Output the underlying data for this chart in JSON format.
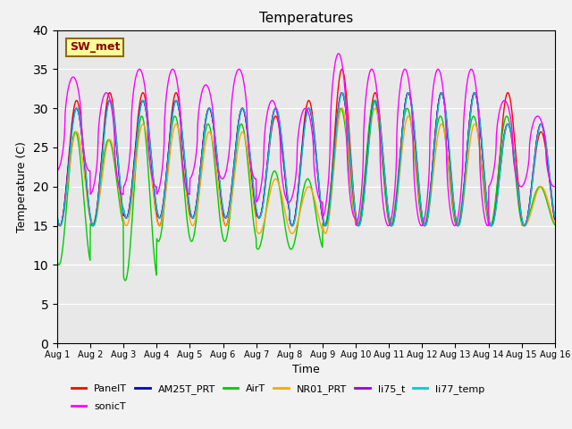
{
  "title": "Temperatures",
  "xlabel": "Time",
  "ylabel": "Temperature (C)",
  "ylim": [
    0,
    40
  ],
  "yticks": [
    0,
    5,
    10,
    15,
    20,
    25,
    30,
    35,
    40
  ],
  "x_tick_labels": [
    "Aug 1",
    "Aug 2",
    "Aug 3",
    "Aug 4",
    "Aug 5",
    "Aug 6",
    "Aug 7",
    "Aug 8",
    "Aug 9",
    "Aug 10",
    "Aug 11",
    "Aug 12",
    "Aug 13",
    "Aug 14",
    "Aug 15",
    "Aug 16"
  ],
  "series": {
    "PanelT": {
      "color": "#FF0000",
      "lw": 1.0
    },
    "AM25T_PRT": {
      "color": "#0000CC",
      "lw": 1.0
    },
    "AirT": {
      "color": "#00CC00",
      "lw": 1.0
    },
    "NR01_PRT": {
      "color": "#FFA500",
      "lw": 1.0
    },
    "li75_t": {
      "color": "#9900CC",
      "lw": 1.0
    },
    "li77_temp": {
      "color": "#00CCCC",
      "lw": 1.0
    },
    "sonicT": {
      "color": "#FF00FF",
      "lw": 1.0
    }
  },
  "annotation_text": "SW_met",
  "annotation_color": "#8B0000",
  "annotation_bg": "#FFFF99",
  "annotation_border": "#8B6914",
  "plot_bg": "#E8E8E8",
  "fig_bg": "#F2F2F2",
  "panel_mins": [
    15,
    15,
    16,
    15,
    16,
    15,
    16,
    15,
    15,
    15,
    15,
    15,
    15,
    15,
    15
  ],
  "panel_maxs": [
    31,
    32,
    32,
    32,
    30,
    30,
    29,
    31,
    35,
    32,
    32,
    32,
    32,
    32,
    27
  ],
  "am25_mins": [
    15,
    15,
    16,
    16,
    16,
    16,
    16,
    15,
    15,
    15,
    15,
    15,
    15,
    15,
    15
  ],
  "am25_maxs": [
    30,
    31,
    31,
    31,
    30,
    30,
    30,
    30,
    32,
    31,
    32,
    32,
    32,
    28,
    28
  ],
  "air_mins": [
    10,
    15,
    8,
    13,
    13,
    13,
    12,
    12,
    15,
    15,
    15,
    15,
    15,
    15,
    15
  ],
  "air_maxs": [
    27,
    26,
    29,
    29,
    28,
    28,
    22,
    21,
    30,
    31,
    30,
    29,
    29,
    29,
    20
  ],
  "nr01_mins": [
    15,
    15,
    15,
    15,
    15,
    15,
    14,
    14,
    14,
    15,
    15,
    15,
    15,
    15,
    15
  ],
  "nr01_maxs": [
    27,
    26,
    28,
    28,
    27,
    27,
    21,
    20,
    30,
    30,
    29,
    28,
    28,
    28,
    20
  ],
  "li75_mins": [
    15,
    15,
    16,
    16,
    16,
    16,
    16,
    15,
    15,
    15,
    15,
    15,
    15,
    15,
    15
  ],
  "li75_maxs": [
    30,
    31,
    31,
    31,
    30,
    30,
    30,
    30,
    32,
    31,
    32,
    32,
    32,
    28,
    28
  ],
  "li77_mins": [
    15,
    15,
    16,
    16,
    16,
    16,
    16,
    15,
    15,
    15,
    15,
    15,
    15,
    15,
    15
  ],
  "li77_maxs": [
    30,
    31,
    31,
    31,
    30,
    30,
    30,
    30,
    32,
    31,
    32,
    32,
    32,
    28,
    28
  ],
  "sonic_mins": [
    22,
    19,
    20,
    19,
    21,
    21,
    18,
    18,
    16,
    15,
    15,
    15,
    15,
    20,
    20
  ],
  "sonic_maxs": [
    34,
    32,
    35,
    35,
    33,
    35,
    31,
    30,
    37,
    35,
    35,
    35,
    35,
    31,
    29
  ],
  "sonic_phase": 0.48,
  "n_points": 1440,
  "days": 15
}
